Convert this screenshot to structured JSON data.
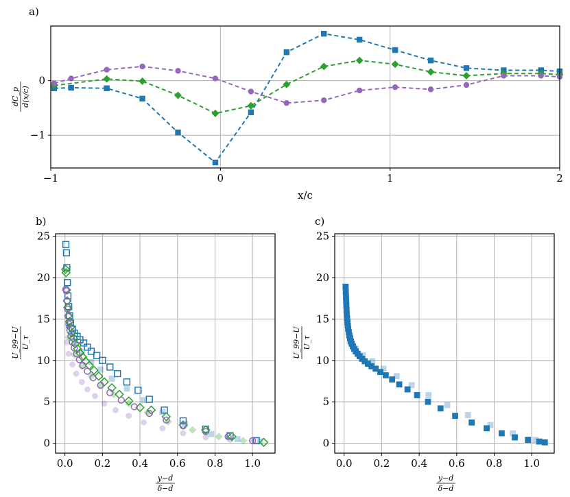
{
  "chart_data": [
    {
      "type": "line",
      "panel_label": "a)",
      "xlabel": "x/c",
      "ylabel_num": "dC_p",
      "ylabel_den": "d(x/c)",
      "xlim": [
        -1,
        2
      ],
      "ylim": [
        -1.6,
        1.0
      ],
      "xticks": [
        -1,
        0,
        1,
        2
      ],
      "xtick_labels": [
        "−1",
        "0",
        "1",
        "2"
      ],
      "yticks": [
        -1,
        0
      ],
      "ytick_labels": [
        "−1",
        "0"
      ],
      "grid": true,
      "series": [
        {
          "name": "blue",
          "color": "#1f77b4",
          "marker": "square",
          "x": [
            -0.98,
            -0.88,
            -0.67,
            -0.46,
            -0.25,
            -0.03,
            0.18,
            0.39,
            0.61,
            0.82,
            1.03,
            1.24,
            1.45,
            1.67,
            1.89,
            2.0
          ],
          "y": [
            -0.14,
            -0.13,
            -0.14,
            -0.33,
            -0.95,
            -1.5,
            -0.58,
            0.52,
            0.86,
            0.75,
            0.56,
            0.37,
            0.23,
            0.19,
            0.19,
            0.17
          ]
        },
        {
          "name": "green",
          "color": "#2ca02c",
          "marker": "diamond",
          "x": [
            -0.98,
            -0.67,
            -0.46,
            -0.25,
            -0.03,
            0.18,
            0.39,
            0.61,
            0.82,
            1.03,
            1.24,
            1.45,
            1.67,
            1.89,
            2.0
          ],
          "y": [
            -0.09,
            0.03,
            -0.01,
            -0.27,
            -0.6,
            -0.46,
            -0.07,
            0.26,
            0.37,
            0.3,
            0.16,
            0.09,
            0.13,
            0.13,
            0.11
          ]
        },
        {
          "name": "purple",
          "color": "#9467bd",
          "marker": "circle",
          "x": [
            -0.98,
            -0.88,
            -0.67,
            -0.46,
            -0.25,
            -0.03,
            0.18,
            0.39,
            0.61,
            0.82,
            1.03,
            1.24,
            1.45,
            1.67,
            1.89,
            2.0
          ],
          "y": [
            -0.05,
            0.04,
            0.2,
            0.26,
            0.18,
            0.04,
            -0.2,
            -0.41,
            -0.36,
            -0.18,
            -0.12,
            -0.16,
            -0.08,
            0.09,
            0.09,
            0.07
          ]
        }
      ]
    },
    {
      "type": "scatter",
      "panel_label": "b)",
      "xlabel_num": "y−d",
      "xlabel_den": "δ−d",
      "ylabel_num": "U_99−U",
      "ylabel_den": "U_τ",
      "xlim": [
        -0.05,
        1.12
      ],
      "ylim": [
        -1.2,
        25.3
      ],
      "xticks": [
        0.0,
        0.2,
        0.4,
        0.6,
        0.8,
        1.0
      ],
      "xtick_labels": [
        "0.0",
        "0.2",
        "0.4",
        "0.6",
        "0.8",
        "1.0"
      ],
      "yticks": [
        0,
        5,
        10,
        15,
        20,
        25
      ],
      "ytick_labels": [
        "0",
        "5",
        "10",
        "15",
        "20",
        "25"
      ],
      "grid": true,
      "series": [
        {
          "name": "blue-filled",
          "color": "#1f77b4",
          "marker": "square",
          "filled": true,
          "alpha": 0.3,
          "x": [
            0.02,
            0.05,
            0.09,
            0.14,
            0.19,
            0.25,
            0.33,
            0.42,
            0.52,
            0.64,
            0.78,
            0.92,
            1.04
          ],
          "y": [
            14.2,
            12.1,
            11.0,
            9.8,
            8.9,
            7.8,
            6.6,
            5.2,
            3.8,
            2.3,
            1.1,
            0.5,
            0.2
          ]
        },
        {
          "name": "green-filled",
          "color": "#2ca02c",
          "marker": "diamond",
          "filled": true,
          "alpha": 0.3,
          "x": [
            0.02,
            0.05,
            0.09,
            0.14,
            0.19,
            0.26,
            0.34,
            0.44,
            0.55,
            0.68,
            0.82,
            0.95
          ],
          "y": [
            12.8,
            10.7,
            9.3,
            8.1,
            7.0,
            5.9,
            4.8,
            3.7,
            2.6,
            1.6,
            0.8,
            0.3
          ]
        },
        {
          "name": "purple-filled",
          "color": "#9467bd",
          "marker": "circle",
          "filled": true,
          "alpha": 0.3,
          "x": [
            0.01,
            0.02,
            0.04,
            0.06,
            0.09,
            0.12,
            0.16,
            0.21,
            0.27,
            0.34,
            0.42,
            0.52,
            0.63,
            0.75,
            0.88,
            1.0
          ],
          "y": [
            12.2,
            10.8,
            9.5,
            8.4,
            7.4,
            6.5,
            5.7,
            4.8,
            4.0,
            3.3,
            2.5,
            1.8,
            1.2,
            0.7,
            0.4,
            0.2
          ]
        },
        {
          "name": "blue-open",
          "color": "#1f77b4",
          "marker": "square",
          "filled": false,
          "x": [
            0.005,
            0.008,
            0.01,
            0.013,
            0.016,
            0.02,
            0.025,
            0.03,
            0.04,
            0.05,
            0.065,
            0.08,
            0.1,
            0.12,
            0.14,
            0.17,
            0.2,
            0.24,
            0.28,
            0.33,
            0.39,
            0.45,
            0.53,
            0.63,
            0.75,
            0.88,
            1.02
          ],
          "y": [
            24.0,
            23.0,
            21.2,
            19.4,
            17.8,
            16.5,
            15.4,
            14.5,
            13.8,
            13.3,
            12.9,
            12.5,
            12.1,
            11.6,
            11.1,
            10.6,
            10.0,
            9.2,
            8.4,
            7.4,
            6.4,
            5.3,
            4.0,
            2.7,
            1.7,
            0.9,
            0.3
          ]
        },
        {
          "name": "green-open",
          "color": "#2ca02c",
          "marker": "diamond",
          "filled": false,
          "x": [
            0.003,
            0.006,
            0.009,
            0.012,
            0.015,
            0.019,
            0.024,
            0.03,
            0.037,
            0.045,
            0.055,
            0.067,
            0.08,
            0.095,
            0.11,
            0.13,
            0.155,
            0.18,
            0.21,
            0.25,
            0.29,
            0.34,
            0.4,
            0.46,
            0.54,
            0.63,
            0.75,
            0.89,
            1.06
          ],
          "y": [
            21.0,
            20.6,
            18.5,
            17.2,
            16.4,
            15.4,
            14.7,
            14.0,
            13.3,
            12.7,
            12.0,
            11.4,
            10.9,
            10.4,
            9.9,
            9.4,
            8.8,
            8.1,
            7.4,
            6.7,
            5.9,
            5.1,
            4.3,
            4.0,
            3.2,
            2.2,
            1.6,
            0.8,
            0.1
          ]
        },
        {
          "name": "purple-open",
          "color": "#9467bd",
          "marker": "circle",
          "filled": false,
          "x": [
            0.005,
            0.008,
            0.011,
            0.014,
            0.017,
            0.021,
            0.026,
            0.032,
            0.04,
            0.05,
            0.062,
            0.077,
            0.095,
            0.12,
            0.15,
            0.19,
            0.24,
            0.3,
            0.37,
            0.45,
            0.54,
            0.63,
            0.75,
            0.87,
            1.0
          ],
          "y": [
            18.6,
            18.4,
            17.2,
            16.2,
            15.3,
            14.4,
            13.6,
            12.9,
            12.2,
            11.5,
            10.8,
            10.1,
            9.4,
            8.7,
            7.9,
            7.0,
            6.1,
            5.2,
            4.4,
            3.6,
            2.8,
            2.1,
            1.4,
            0.8,
            0.3
          ]
        }
      ]
    },
    {
      "type": "scatter",
      "panel_label": "c)",
      "xlabel_num": "y−d",
      "xlabel_den": "δ−d",
      "ylabel_num": "U_99−U",
      "ylabel_den": "U_τ",
      "xlim": [
        -0.05,
        1.12
      ],
      "ylim": [
        -1.2,
        25.3
      ],
      "xticks": [
        0.0,
        0.2,
        0.4,
        0.6,
        0.8,
        1.0
      ],
      "xtick_labels": [
        "0.0",
        "0.2",
        "0.4",
        "0.6",
        "0.8",
        "1.0"
      ],
      "yticks": [
        0,
        5,
        10,
        15,
        20,
        25
      ],
      "ytick_labels": [
        "0",
        "5",
        "10",
        "15",
        "20",
        "25"
      ],
      "grid": true,
      "series": [
        {
          "name": "blue-light",
          "color": "#1f77b4",
          "marker": "square",
          "filled": true,
          "alpha": 0.3,
          "x": [
            0.03,
            0.06,
            0.1,
            0.15,
            0.21,
            0.28,
            0.36,
            0.45,
            0.55,
            0.66,
            0.78,
            0.9,
            1.02
          ],
          "y": [
            12.4,
            11.4,
            10.6,
            9.9,
            9.0,
            8.1,
            7.0,
            5.8,
            4.6,
            3.4,
            2.2,
            1.2,
            0.4
          ]
        },
        {
          "name": "blue-dark",
          "color": "#1f77b4",
          "marker": "square",
          "filled": true,
          "alpha": 1.0,
          "x": [
            0.008,
            0.009,
            0.01,
            0.011,
            0.012,
            0.013,
            0.014,
            0.016,
            0.018,
            0.02,
            0.022,
            0.025,
            0.028,
            0.032,
            0.036,
            0.041,
            0.047,
            0.054,
            0.062,
            0.072,
            0.083,
            0.096,
            0.11,
            0.127,
            0.146,
            0.168,
            0.193,
            0.222,
            0.256,
            0.294,
            0.338,
            0.389,
            0.447,
            0.514,
            0.592,
            0.68,
            0.76,
            0.84,
            0.91,
            0.98,
            1.04,
            1.07
          ],
          "y": [
            18.9,
            18.3,
            17.7,
            17.1,
            16.6,
            16.1,
            15.6,
            15.1,
            14.6,
            14.2,
            13.8,
            13.4,
            13.0,
            12.7,
            12.3,
            12.0,
            11.7,
            11.4,
            11.1,
            10.8,
            10.5,
            10.2,
            9.9,
            9.6,
            9.3,
            9.0,
            8.6,
            8.2,
            7.7,
            7.1,
            6.5,
            5.8,
            5.0,
            4.2,
            3.3,
            2.5,
            1.8,
            1.2,
            0.7,
            0.4,
            0.2,
            0.1
          ]
        }
      ]
    }
  ]
}
